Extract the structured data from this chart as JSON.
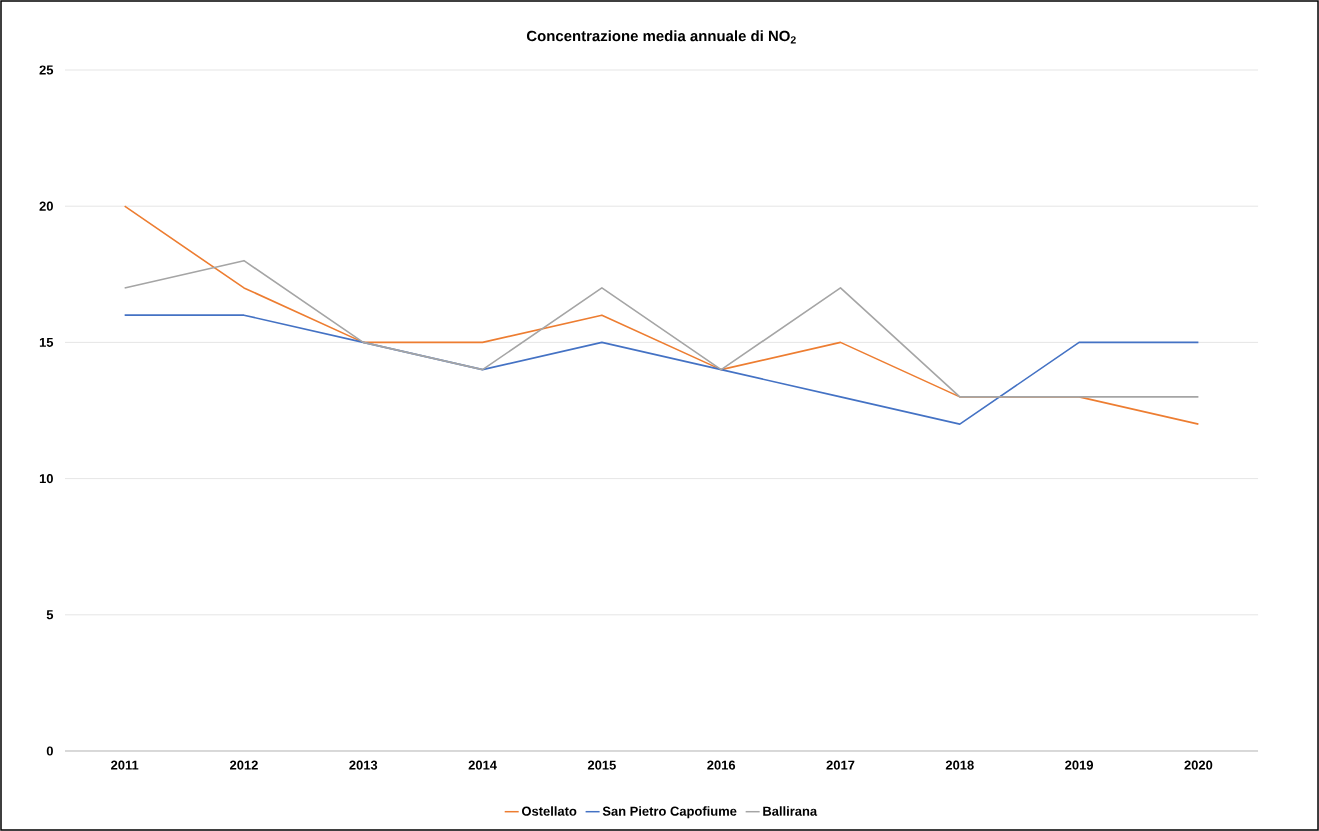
{
  "chart_data": {
    "type": "line",
    "title": "Concentrazione media annuale di NO$_{2}$",
    "categories": [
      "2011",
      "2012",
      "2013",
      "2014",
      "2015",
      "2016",
      "2017",
      "2018",
      "2019",
      "2020"
    ],
    "series": [
      {
        "name": "Ostellato",
        "color": "#ed7d31",
        "values": [
          20,
          17,
          15,
          15,
          16,
          14,
          15,
          13,
          13,
          12
        ]
      },
      {
        "name": "San Pietro Capofiume",
        "color": "#4472c4",
        "values": [
          16,
          16,
          15,
          14,
          15,
          14,
          13,
          12,
          15,
          15
        ]
      },
      {
        "name": "Ballirana",
        "color": "#a5a5a5",
        "values": [
          17,
          18,
          15,
          14,
          17,
          14,
          17,
          13,
          13,
          13
        ]
      }
    ],
    "ylim": [
      0,
      25
    ],
    "yticks": [
      0,
      5,
      10,
      15,
      20,
      25
    ],
    "grid": "y",
    "legend": "bottom",
    "marker": "none",
    "line_style": "solid"
  }
}
